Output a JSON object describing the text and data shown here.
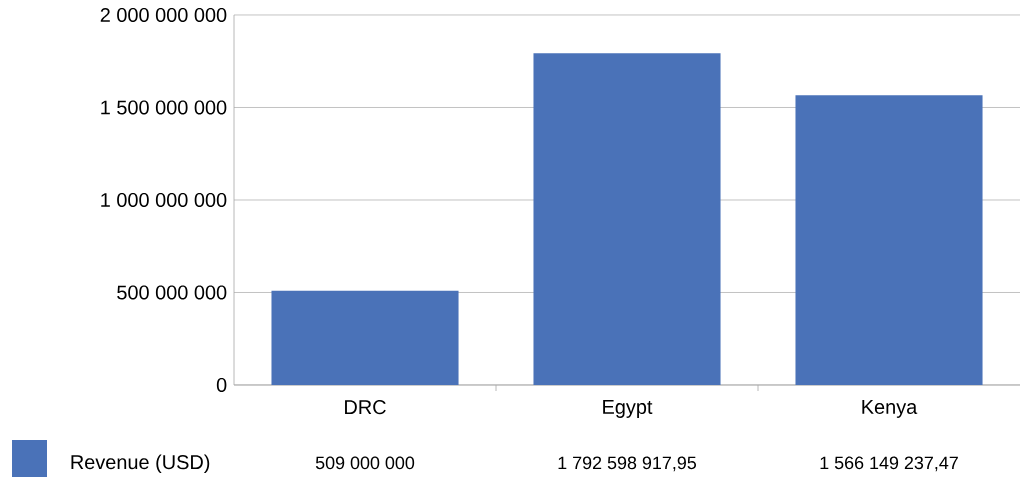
{
  "chart_data": {
    "type": "bar",
    "categories": [
      "DRC",
      "Egypt",
      "Kenya"
    ],
    "series": [
      {
        "name": "Revenue (USD)",
        "color": "#4a72b8",
        "values": [
          509000000,
          1792598917.95,
          1566149237.47
        ],
        "value_labels": [
          "509 000 000",
          "1 792 598 917,95",
          "1 566 149 237,47"
        ]
      }
    ],
    "ylim": [
      0,
      2000000000
    ],
    "yticks": [
      0,
      {
        "value": 500000000,
        "label": "500 000 000"
      },
      {
        "value": 1000000000,
        "label": "1 000 000 000"
      },
      {
        "value": 1500000000,
        "label": "1 500 000 000"
      },
      {
        "value": 2000000000,
        "label": "2 000 000 000"
      }
    ],
    "grid": "y",
    "legend": "bottom left"
  }
}
